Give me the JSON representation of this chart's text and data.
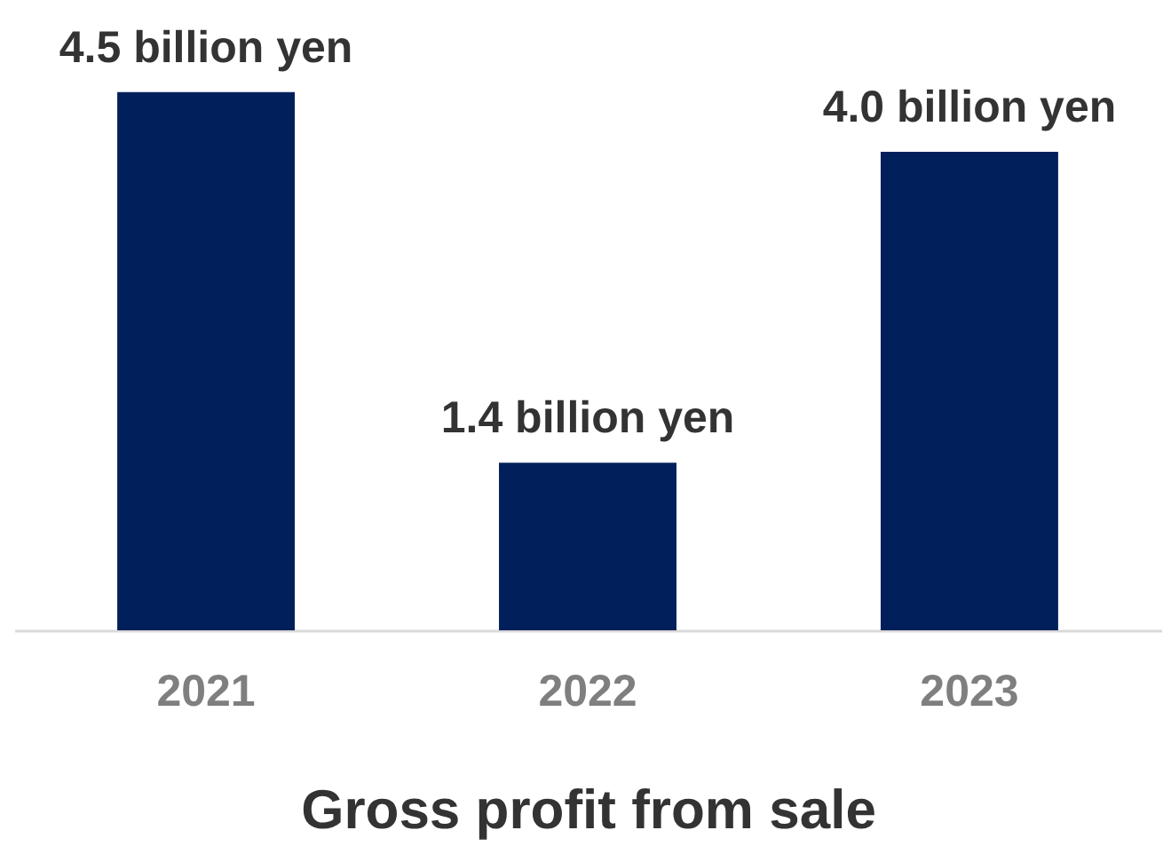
{
  "chart_data": {
    "type": "bar",
    "xlabel": "Gross profit from sale",
    "categories": [
      "2021",
      "2022",
      "2023"
    ],
    "values": [
      4.5,
      1.4,
      4.0
    ],
    "value_labels": [
      "4.5 billion yen",
      "1.4 billion yen",
      "4.0 billion yen"
    ],
    "color": "#001f5b"
  }
}
